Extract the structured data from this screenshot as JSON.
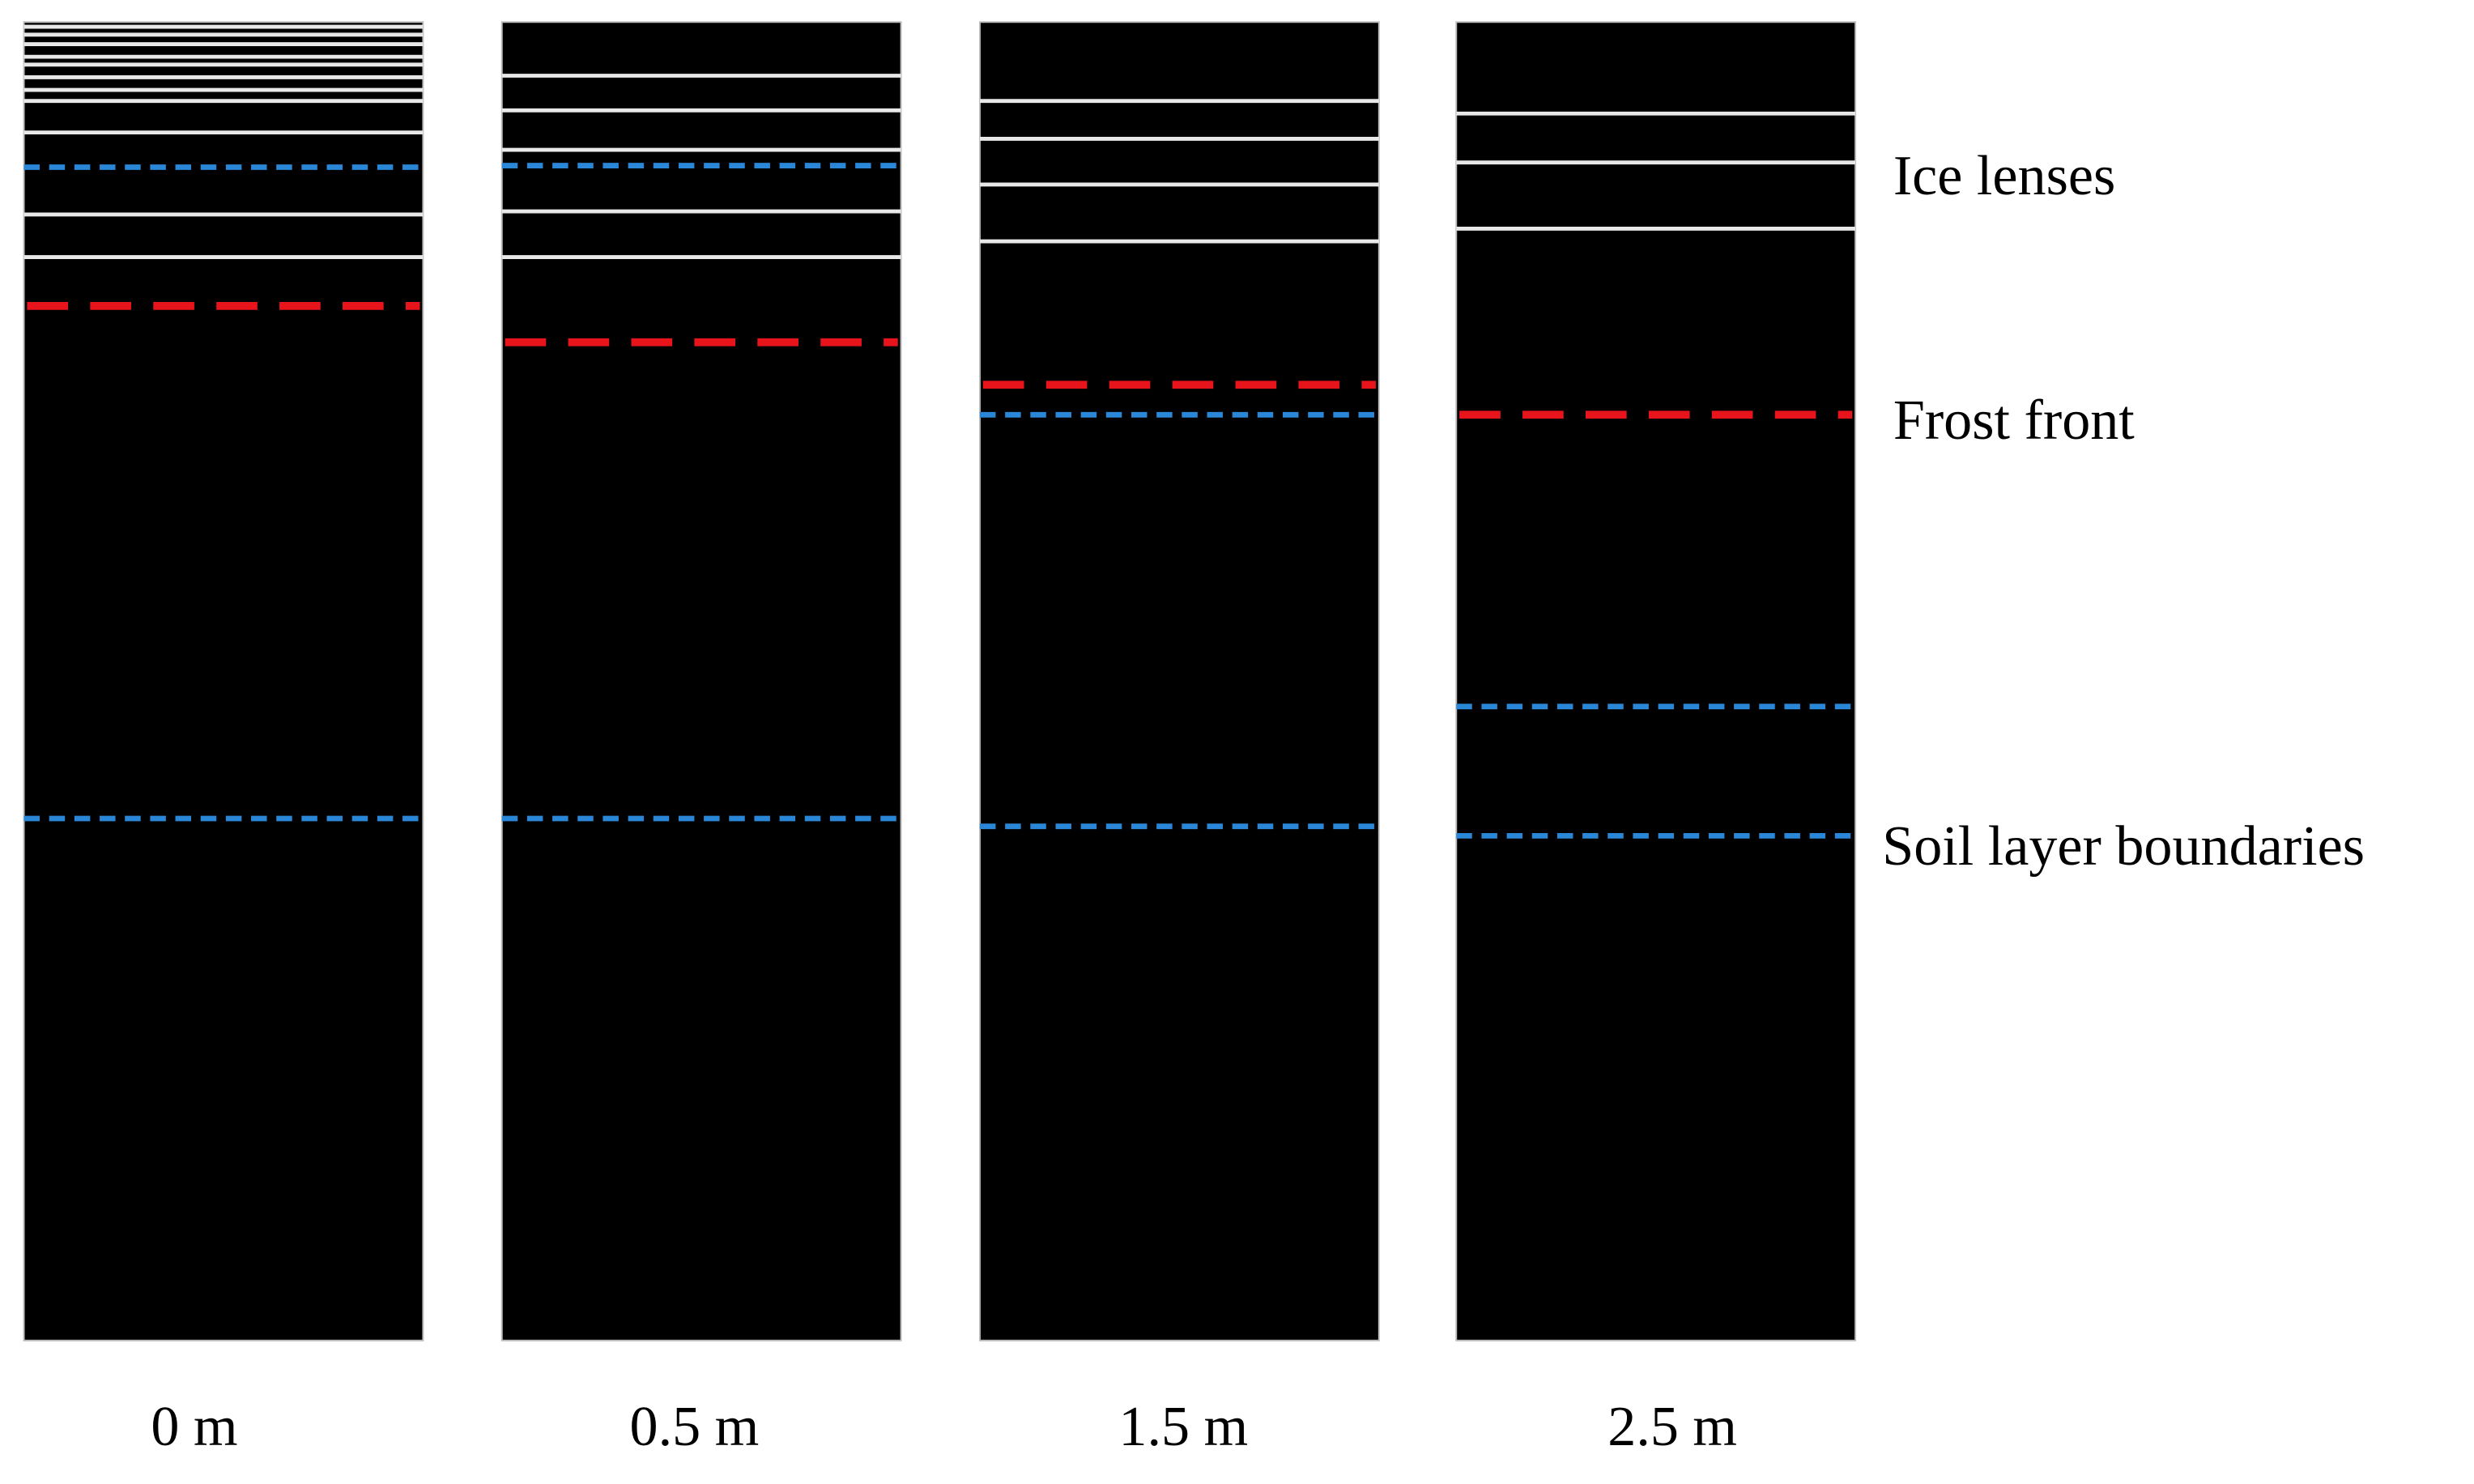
{
  "columns": [
    {
      "label": "0 m"
    },
    {
      "label": "0.5 m"
    },
    {
      "label": "1.5 m"
    },
    {
      "label": "2.5 m"
    }
  ],
  "legend": {
    "ice_lenses": "Ice lenses",
    "frost_front": "Frost front",
    "soil_layer_boundaries": "Soil layer boundaries"
  }
}
